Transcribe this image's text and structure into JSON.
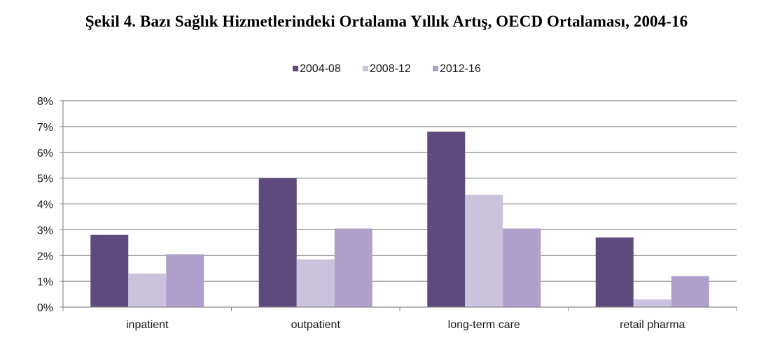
{
  "figure": {
    "title": "Şekil 4. Bazı Sağlık Hizmetlerindeki Ortalama Yıllık Artış, OECD Ortalaması, 2004-16"
  },
  "chart_data": {
    "type": "bar",
    "title": "Şekil 4. Bazı Sağlık Hizmetlerindeki Ortalama Yıllık Artış, OECD Ortalaması, 2004-16",
    "xlabel": "",
    "ylabel": "",
    "categories": [
      "inpatient",
      "outpatient",
      "long-term care",
      "retail pharma"
    ],
    "series": [
      {
        "name": "2004-08",
        "color": "#5f4a7d",
        "values": [
          2.8,
          5.0,
          6.8,
          2.7
        ]
      },
      {
        "name": "2008-12",
        "color": "#cbc3de",
        "values": [
          1.3,
          1.85,
          4.35,
          0.3
        ]
      },
      {
        "name": "2012-16",
        "color": "#ae9fcb",
        "values": [
          2.05,
          3.05,
          3.05,
          1.2
        ]
      }
    ],
    "ylim": [
      0,
      8
    ],
    "yticks": [
      0,
      1,
      2,
      3,
      4,
      5,
      6,
      7,
      8
    ],
    "ytick_labels": [
      "0%",
      "1%",
      "2%",
      "3%",
      "4%",
      "5%",
      "6%",
      "7%",
      "8%"
    ],
    "grid": true,
    "legend_position": "top-center"
  }
}
